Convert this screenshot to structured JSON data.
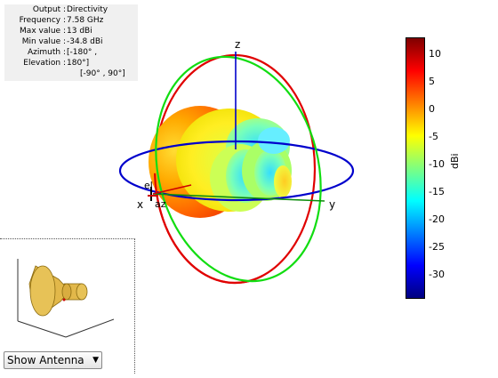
{
  "info": {
    "rows": [
      {
        "key": "Output :",
        "value": "Directivity"
      },
      {
        "key": "Frequency :",
        "value": "7.58 GHz"
      },
      {
        "key": "Max value :",
        "value": "13 dBi"
      },
      {
        "key": "Min value :",
        "value": "-34.8 dBi"
      },
      {
        "key": "Azimuth :",
        "value": "[-180° ,"
      },
      {
        "key": "Elevation :",
        "value": "180°]"
      },
      {
        "key": "",
        "value": "[-90° , 90°]"
      }
    ]
  },
  "axes": {
    "x": "x",
    "y": "y",
    "z": "z",
    "el": "el",
    "az": "az"
  },
  "colorbar": {
    "label": "dBi",
    "ticks": [
      "10",
      "5",
      "0",
      "-5",
      "-10",
      "-15",
      "-20",
      "-25",
      "-30"
    ],
    "colors": {
      "max": "#7f0000",
      "mid": "#ffff00",
      "min": "#00007f"
    }
  },
  "control": {
    "view_select": "Show Antenna"
  }
}
